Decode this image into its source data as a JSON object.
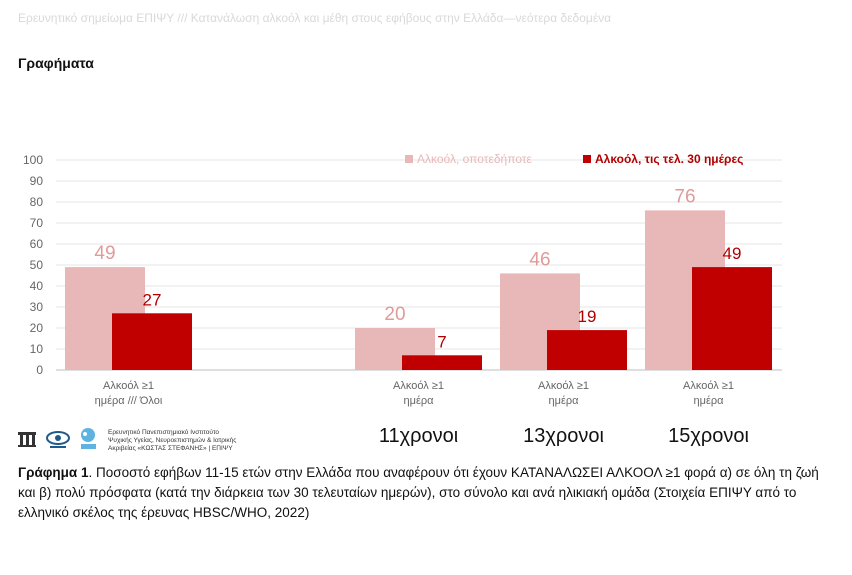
{
  "header": {
    "running_title": "Ερευνητικό σημείωμα ΕΠΙΨΥ /// Κατανάλωση αλκοόλ και μέθη στους εφήβους στην Ελλάδα—νεότερα δεδομένα",
    "section_title": "Γραφήματα"
  },
  "chart_data": {
    "type": "bar",
    "ylim": [
      0,
      100
    ],
    "yticks": [
      "0",
      "10",
      "20",
      "30",
      "40",
      "50",
      "60",
      "70",
      "80",
      "90",
      "100"
    ],
    "grid": true,
    "legend_position": "top-right",
    "groups": [
      {
        "category_label": [
          "Αλκοόλ ≥1",
          "ημέρα /// Όλοι"
        ],
        "age_label": ""
      },
      {
        "category_label": [
          "Αλκοόλ ≥1",
          "ημέρα"
        ],
        "age_label": "11χρονοι"
      },
      {
        "category_label": [
          "Αλκοόλ ≥1",
          "ημέρα"
        ],
        "age_label": "13χρονοι"
      },
      {
        "category_label": [
          "Αλκοόλ ≥1",
          "ημέρα"
        ],
        "age_label": "15χρονοι"
      }
    ],
    "series": [
      {
        "name": "Αλκοόλ, οποτεδήποτε",
        "color": "#e8b8b8",
        "label_color": "#e09a9a",
        "values": [
          49,
          20,
          46,
          76
        ]
      },
      {
        "name": "Αλκοόλ, τις τελ. 30 ημέρες",
        "color": "#c00000",
        "label_color": "#b00000",
        "values": [
          27,
          7,
          19,
          49
        ]
      }
    ]
  },
  "logos": {
    "text_lines": [
      "Ερευνητικό Πανεπιστημιακό Ινστιτούτο",
      "Ψυχικής Υγείας, Νευροεπιστημών & Ιατρικής",
      "Ακριβείας «ΚΩΣΤΑΣ ΣΤΕΦΑΝΗΣ» | ΕΠΙΨΥ"
    ],
    "icons": [
      "epipsy-logo-icon",
      "second-institution-logo-icon",
      "hbsc-logo-icon"
    ]
  },
  "caption": {
    "label": "Γράφημα 1",
    "text": ". Ποσοστό εφήβων 11-15 ετών στην Ελλάδα που αναφέρουν ότι έχουν ΚΑΤΑΝΑΛΩΣΕΙ ΑΛΚΟΟΛ ≥1 φορά α) σε όλη τη ζωή και β) πολύ πρόσφατα (κατά την διάρκεια των 30 τελευταίων ημερών), στο σύνολο και ανά ηλικιακή ομάδα (Στοιχεία ΕΠΙΨΥ από το ελληνικό σκέλος της έρευνας HBSC/WHO, 2022)"
  }
}
